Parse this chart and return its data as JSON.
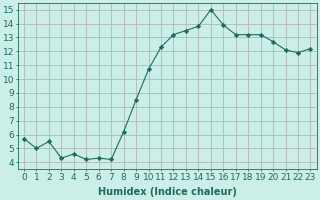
{
  "x": [
    0,
    1,
    2,
    3,
    4,
    5,
    6,
    7,
    8,
    9,
    10,
    11,
    12,
    13,
    14,
    15,
    16,
    17,
    18,
    19,
    20,
    21,
    22,
    23
  ],
  "y": [
    5.7,
    5.0,
    5.5,
    4.3,
    4.6,
    4.2,
    4.3,
    4.2,
    6.2,
    8.5,
    10.7,
    12.3,
    13.2,
    13.5,
    13.8,
    15.0,
    13.9,
    13.2,
    13.2,
    13.2,
    12.7,
    12.1,
    11.9,
    12.2
  ],
  "line_color": "#1e6b5e",
  "marker": "D",
  "marker_size": 2.2,
  "bg_color": "#cceee8",
  "grid_color": "#b0b8b4",
  "xlabel": "Humidex (Indice chaleur)",
  "xlim": [
    -0.5,
    23.5
  ],
  "ylim": [
    3.5,
    15.5
  ],
  "yticks": [
    4,
    5,
    6,
    7,
    8,
    9,
    10,
    11,
    12,
    13,
    14,
    15
  ],
  "xlabel_fontsize": 7,
  "tick_fontsize": 6.5
}
